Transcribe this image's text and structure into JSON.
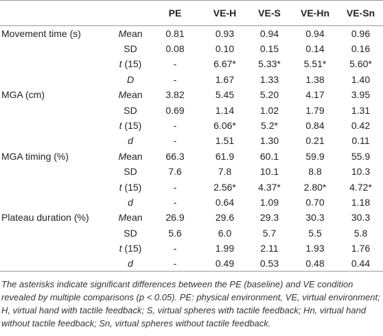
{
  "table": {
    "columns": [
      "PE",
      "VE-H",
      "VE-S",
      "VE-Hn",
      "VE-Sn"
    ],
    "groups": [
      {
        "label": "Movement time (s)",
        "rows": [
          {
            "stat": "Mean",
            "values": [
              "0.81",
              "0.93",
              "0.94",
              "0.94",
              "0.96"
            ]
          },
          {
            "stat": "SD",
            "values": [
              "0.08",
              "0.10",
              "0.15",
              "0.14",
              "0.16"
            ]
          },
          {
            "stat": "t (15)",
            "values": [
              "-",
              "6.67*",
              "5.33*",
              "5.51*",
              "5.60*"
            ]
          },
          {
            "stat": "D",
            "values": [
              "-",
              "1.67",
              "1.33",
              "1.38",
              "1.40"
            ]
          }
        ]
      },
      {
        "label": "MGA (cm)",
        "rows": [
          {
            "stat": "Mean",
            "values": [
              "3.82",
              "5.45",
              "5.20",
              "4.17",
              "3.95"
            ]
          },
          {
            "stat": "SD",
            "values": [
              "0.69",
              "1.14",
              "1.02",
              "1.79",
              "1.31"
            ]
          },
          {
            "stat": "t (15)",
            "values": [
              "-",
              "6.06*",
              "5.2*",
              "0.84",
              "0.42"
            ]
          },
          {
            "stat": "d",
            "values": [
              "-",
              "1.51",
              "1.30",
              "0.21",
              "0.11"
            ]
          }
        ]
      },
      {
        "label": "MGA timing (%)",
        "rows": [
          {
            "stat": "Mean",
            "values": [
              "66.3",
              "61.9",
              "60.1",
              "59.9",
              "55.9"
            ]
          },
          {
            "stat": "SD",
            "values": [
              "7.6",
              "7.8",
              "10.1",
              "8.8",
              "10.3"
            ]
          },
          {
            "stat": "t (15)",
            "values": [
              "-",
              "2.56*",
              "4.37*",
              "2.80*",
              "4.72*"
            ]
          },
          {
            "stat": "d",
            "values": [
              "-",
              "0.64",
              "1.09",
              "0.70",
              "1.18"
            ]
          }
        ]
      },
      {
        "label": "Plateau duration (%)",
        "rows": [
          {
            "stat": "Mean",
            "values": [
              "26.9",
              "29.6",
              "29.3",
              "30.3",
              "30.3"
            ]
          },
          {
            "stat": "SD",
            "values": [
              "5.6",
              "6.0",
              "5.7",
              "5.5",
              "5.8"
            ]
          },
          {
            "stat": "t (15)",
            "values": [
              "-",
              "1.99",
              "2.11",
              "1.93",
              "1.76"
            ]
          },
          {
            "stat": "d",
            "values": [
              "-",
              "0.49",
              "0.53",
              "0.48",
              "0.44"
            ]
          }
        ]
      }
    ],
    "footnote": "The asterisks indicate significant differences between the PE (baseline) and VE condition revealed by multiple comparisons (p < 0.05). PE: physical environment, VE, virtual environment; H, virtual hand with tactile feedback; S, virtual spheres with tactile feedback; Hn, virtual hand without tactile feedback; Sn, virtual spheres without tactile feedback."
  }
}
